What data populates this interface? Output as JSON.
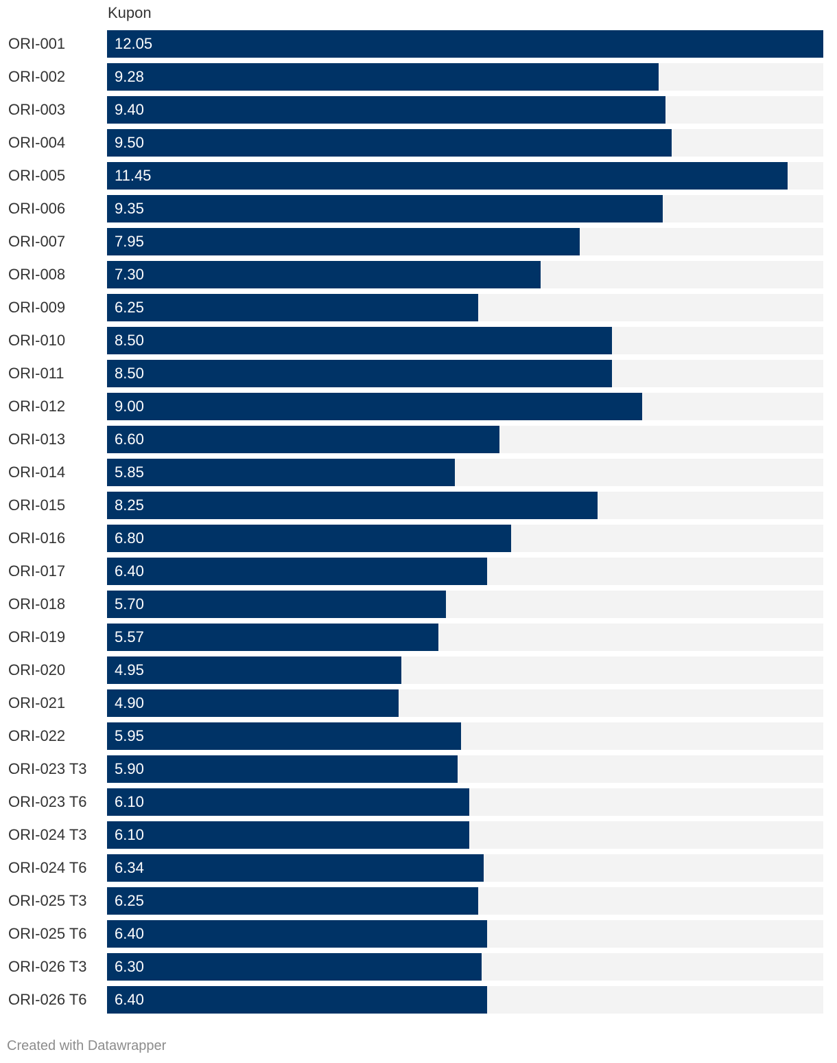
{
  "chart_data": {
    "type": "bar",
    "orientation": "horizontal",
    "column_header": "Kupon",
    "categories": [
      "ORI-001",
      "ORI-002",
      "ORI-003",
      "ORI-004",
      "ORI-005",
      "ORI-006",
      "ORI-007",
      "ORI-008",
      "ORI-009",
      "ORI-010",
      "ORI-011",
      "ORI-012",
      "ORI-013",
      "ORI-014",
      "ORI-015",
      "ORI-016",
      "ORI-017",
      "ORI-018",
      "ORI-019",
      "ORI-020",
      "ORI-021",
      "ORI-022",
      "ORI-023 T3",
      "ORI-023 T6",
      "ORI-024 T3",
      "ORI-024 T6",
      "ORI-025 T3",
      "ORI-025 T6",
      "ORI-026 T3",
      "ORI-026 T6"
    ],
    "values": [
      12.05,
      9.28,
      9.4,
      9.5,
      11.45,
      9.35,
      7.95,
      7.3,
      6.25,
      8.5,
      8.5,
      9.0,
      6.6,
      5.85,
      8.25,
      6.8,
      6.4,
      5.7,
      5.57,
      4.95,
      4.9,
      5.95,
      5.9,
      6.1,
      6.1,
      6.34,
      6.25,
      6.4,
      6.3,
      6.4
    ],
    "value_labels": [
      "12.05",
      "9.28",
      "9.40",
      "9.50",
      "11.45",
      "9.35",
      "7.95",
      "7.30",
      "6.25",
      "8.50",
      "8.50",
      "9.00",
      "6.60",
      "5.85",
      "8.25",
      "6.80",
      "6.40",
      "5.70",
      "5.57",
      "4.95",
      "4.90",
      "5.95",
      "5.90",
      "6.10",
      "6.10",
      "6.34",
      "6.25",
      "6.40",
      "6.30",
      "6.40"
    ],
    "xlim": [
      0,
      12.05
    ],
    "bar_color": "#003366",
    "track_color": "#f3f3f3",
    "grid": false
  },
  "footer": {
    "credit": "Created with Datawrapper"
  }
}
